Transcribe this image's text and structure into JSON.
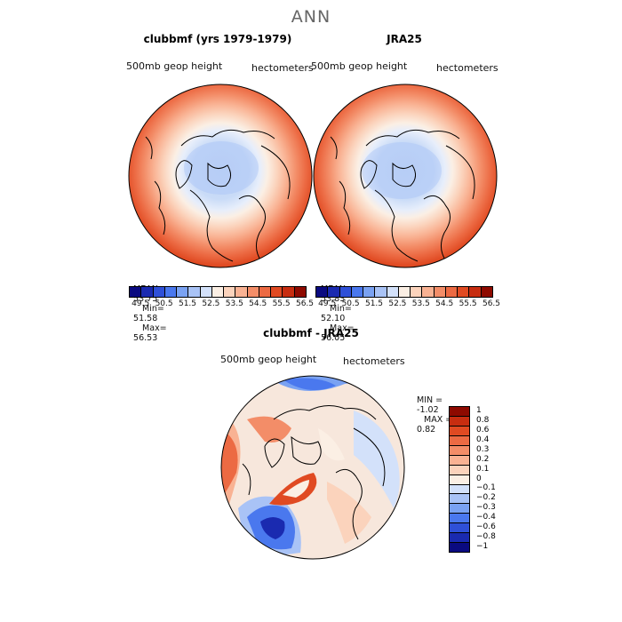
{
  "title": "ANN",
  "panels": [
    {
      "title": "clubbmf (yrs 1979-1979)",
      "var": "500mb geop height",
      "units": "hectometers",
      "stats": {
        "mean_label": "MEAN=",
        "mean": "53.75",
        "min_label": "Min=",
        "min": "51.58",
        "max_label": "Max=",
        "max": "56.53"
      }
    },
    {
      "title": "JRA25",
      "var": "500mb geop height",
      "units": "hectometers",
      "stats": {
        "mean_label": "MEAN=",
        "mean": "53.83",
        "min_label": "Min=",
        "min": "52.10",
        "max_label": "Max=",
        "max": "56.05"
      }
    },
    {
      "title": "clubbmf - JRA25",
      "var": "500mb geop height",
      "units": "hectometers",
      "stats": {
        "min_label": "MIN =",
        "min": "-1.02",
        "max_label": "MAX =",
        "max": "0.82"
      }
    }
  ],
  "colorbar_top": {
    "colors": [
      "#0a0a80",
      "#1a2ab0",
      "#2f50d8",
      "#4a78ee",
      "#7aa2f2",
      "#a9c3f6",
      "#d3e1fa",
      "#fbefe4",
      "#fbd3bc",
      "#f9b293",
      "#f38d68",
      "#ec6a43",
      "#e04a22",
      "#c72d10",
      "#8e0a00"
    ],
    "labels": [
      "49.5",
      "50.5",
      "51.5",
      "52.5",
      "53.5",
      "54.5",
      "55.5",
      "56.5"
    ]
  },
  "colorbar_diff": {
    "colors": [
      "#8e0a00",
      "#c72d10",
      "#e04a22",
      "#ec6a43",
      "#f38d68",
      "#f9b293",
      "#fbd3bc",
      "#fbefe4",
      "#d3e1fa",
      "#a9c3f6",
      "#7aa2f2",
      "#4a78ee",
      "#2f50d8",
      "#1a2ab0",
      "#0a0a80"
    ],
    "labels": [
      "1",
      "0.8",
      "0.6",
      "0.4",
      "0.3",
      "0.2",
      "0.1",
      "0",
      "−0.1",
      "−0.2",
      "−0.3",
      "−0.4",
      "−0.6",
      "−0.8",
      "−1"
    ]
  }
}
